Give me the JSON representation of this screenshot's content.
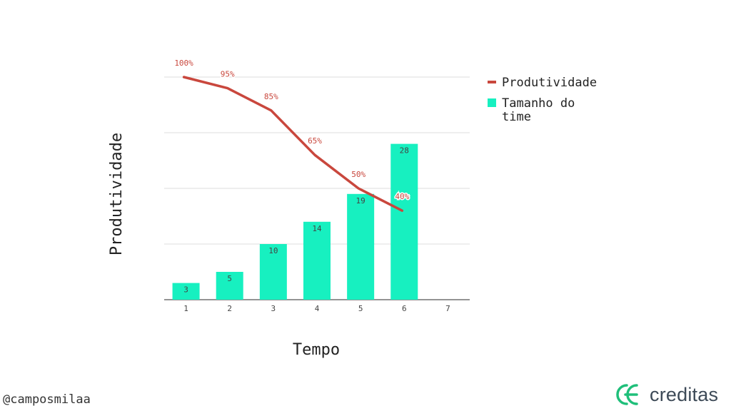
{
  "chart_data": {
    "type": "bar",
    "categories": [
      "1",
      "2",
      "3",
      "4",
      "5",
      "6",
      "7"
    ],
    "series": [
      {
        "name": "Tamanho do time",
        "kind": "bar",
        "color": "#17f0c0",
        "values": [
          3,
          5,
          10,
          14,
          19,
          28,
          null
        ],
        "labels": [
          "3",
          "5",
          "10",
          "14",
          "19",
          "28",
          ""
        ]
      },
      {
        "name": "Produtividade",
        "kind": "line",
        "color": "#c9473d",
        "values": [
          100,
          95,
          85,
          65,
          50,
          40,
          null
        ],
        "labels": [
          "100%",
          "95%",
          "85%",
          "65%",
          "50%",
          "40%",
          ""
        ]
      }
    ],
    "xlabel": "Tempo",
    "ylabel": "Produtividade",
    "bar_ylim": [
      0,
      40
    ],
    "line_ylim": [
      0,
      100
    ],
    "grid": true,
    "legend_position": "right"
  },
  "footer": {
    "handle": "@camposmilaa",
    "brand": "creditas",
    "brand_color": "#1fbf7a",
    "brand_icon": "creditas-logo-icon"
  }
}
